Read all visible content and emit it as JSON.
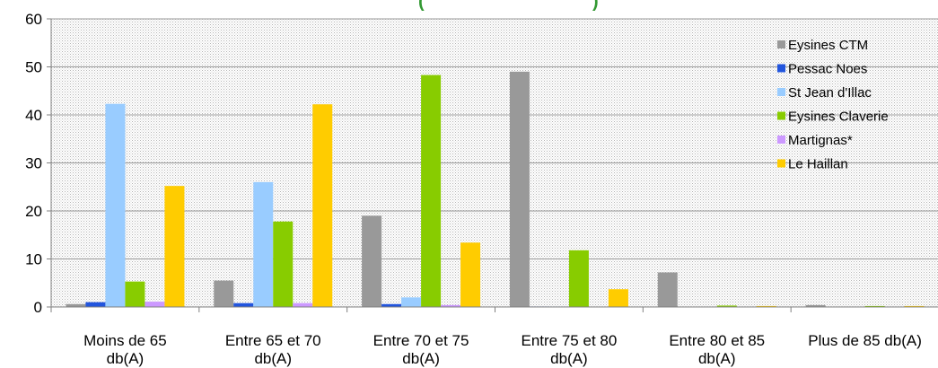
{
  "chart_data": {
    "type": "bar",
    "title_fragment": "(",
    "title_fragment_end": ")",
    "categories": [
      [
        "Moins de 65",
        "db(A)"
      ],
      [
        "Entre 65 et 70",
        "db(A)"
      ],
      [
        "Entre 70 et 75",
        "db(A)"
      ],
      [
        "Entre 75 et 80",
        "db(A)"
      ],
      [
        "Entre 80 et 85",
        "db(A)"
      ],
      [
        "Plus de 85 db(A)"
      ]
    ],
    "ylim": [
      0,
      60
    ],
    "yticks": [
      0,
      10,
      20,
      30,
      40,
      50,
      60
    ],
    "grid": true,
    "legend_position": "right",
    "series": [
      {
        "name": "Eysines CTM",
        "color": "#999999",
        "values": [
          0.6,
          5.5,
          19,
          49,
          7.2,
          0.4
        ]
      },
      {
        "name": "Pessac Noes",
        "color": "#2255dd",
        "values": [
          1.0,
          0.8,
          0.6,
          0.1,
          0,
          0
        ]
      },
      {
        "name": "St Jean d'Illac",
        "color": "#99ccff",
        "values": [
          42.3,
          26,
          2,
          0.1,
          0,
          0
        ]
      },
      {
        "name": "Eysines Claverie",
        "color": "#88cc00",
        "values": [
          5.3,
          17.8,
          48.3,
          11.8,
          0.3,
          0.2
        ]
      },
      {
        "name": "Martignas*",
        "color": "#cc99ff",
        "values": [
          1.1,
          0.8,
          0.4,
          0,
          0,
          0
        ]
      },
      {
        "name": "Le Haillan",
        "color": "#ffcc00",
        "values": [
          25.2,
          42.2,
          13.4,
          3.7,
          0.2,
          0.2
        ]
      }
    ]
  }
}
